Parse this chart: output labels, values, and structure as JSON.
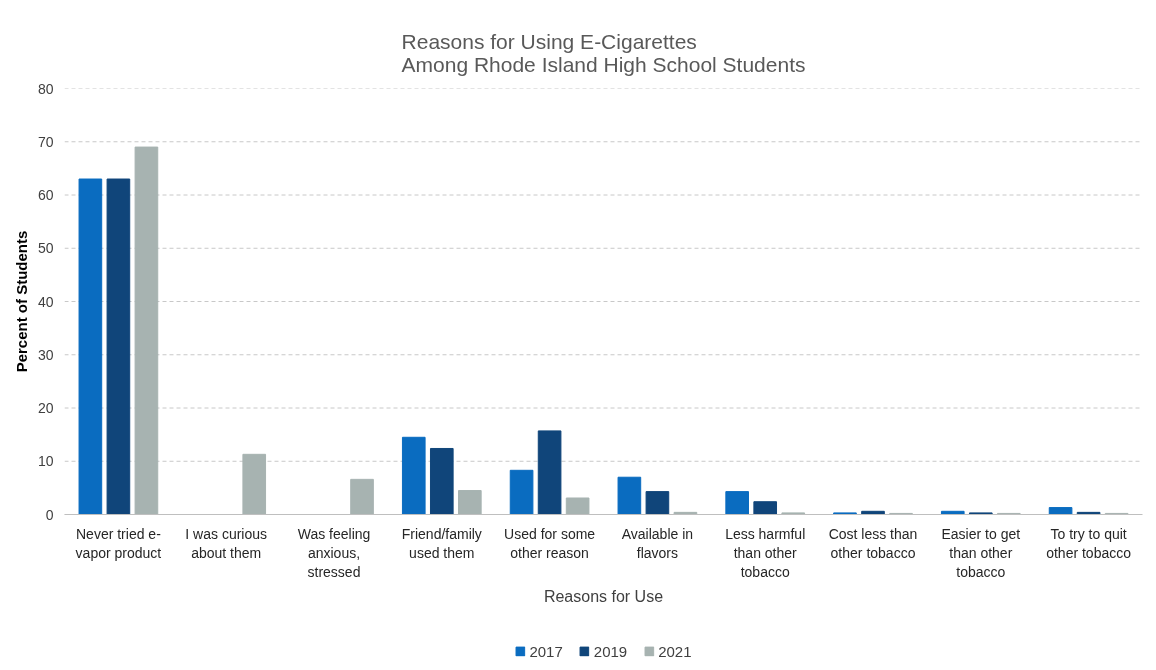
{
  "chart_data": {
    "type": "bar",
    "title": "Reasons for Using E-Cigarettes\nAmong Rhode Island High School Students",
    "xlabel": "Reasons for Use",
    "ylabel": "Percent of Students",
    "categories": [
      "Never tried e-vapor product",
      "I was curious about them",
      "Was feeling anxious, stressed",
      "Friend/family used them",
      "Used for some other reason",
      "Available in flavors",
      "Less harmful than other tobacco",
      "Cost less than other tobacco",
      "Easier to get than other tobacco",
      "To try to quit other tobacco"
    ],
    "series": [
      {
        "name": "2017",
        "color": "#0a6cc0",
        "values": [
          63,
          null,
          null,
          14.5,
          8.3,
          7.0,
          4.3,
          0.3,
          0.6,
          1.3
        ]
      },
      {
        "name": "2019",
        "color": "#10457a",
        "values": [
          63,
          null,
          null,
          12.4,
          15.7,
          4.3,
          2.4,
          0.6,
          0.3,
          0.4
        ]
      },
      {
        "name": "2021",
        "color": "#a7b3b1",
        "values": [
          69,
          11.3,
          6.6,
          4.5,
          3.1,
          0.4,
          0.3,
          0.2,
          0.2,
          0.2
        ]
      }
    ],
    "ylim": [
      0,
      80
    ],
    "yticks": [
      0,
      10,
      20,
      30,
      40,
      50,
      60,
      70,
      80
    ],
    "grid": "y",
    "legend": "bottom"
  }
}
